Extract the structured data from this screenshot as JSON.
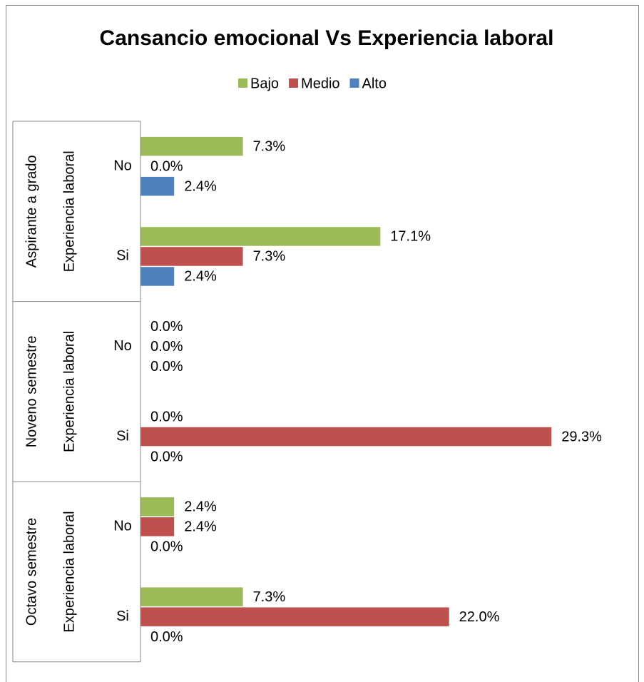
{
  "chart_data": {
    "type": "bar",
    "orientation": "horizontal",
    "title": "Cansancio emocional Vs Experiencia laboral",
    "groups": [
      {
        "name": "Aspirante a grado",
        "sublabel": "Experiencia laboral",
        "categories": [
          "No",
          "Si"
        ]
      },
      {
        "name": "Noveno semestre",
        "sublabel": "Experiencia laboral",
        "categories": [
          "No",
          "Si"
        ]
      },
      {
        "name": "Octavo semestre",
        "sublabel": "Experiencia laboral",
        "categories": [
          "No",
          "Si"
        ]
      }
    ],
    "series": [
      {
        "name": "Bajo",
        "color": "#9bbb59",
        "values": [
          7.3,
          17.1,
          0,
          0,
          2.4,
          7.3
        ],
        "value_labels": [
          "7.3%",
          "17.1%",
          "0.0%",
          "0.0%",
          "2.4%",
          "7.3%"
        ]
      },
      {
        "name": "Medio",
        "color": "#c0504d",
        "values": [
          0,
          7.3,
          0,
          29.3,
          2.4,
          22.0
        ],
        "value_labels": [
          "0.0%",
          "7.3%",
          "0.0%",
          "29.3%",
          "2.4%",
          "22.0%"
        ]
      },
      {
        "name": "Alto",
        "color": "#4f81bd",
        "values": [
          2.4,
          2.4,
          0,
          0,
          0,
          0
        ],
        "value_labels": [
          "2.4%",
          "2.4%",
          "0.0%",
          "0.0%",
          "0.0%",
          "0.0%"
        ]
      }
    ],
    "xlim": [
      0,
      30
    ],
    "legend": "top"
  }
}
